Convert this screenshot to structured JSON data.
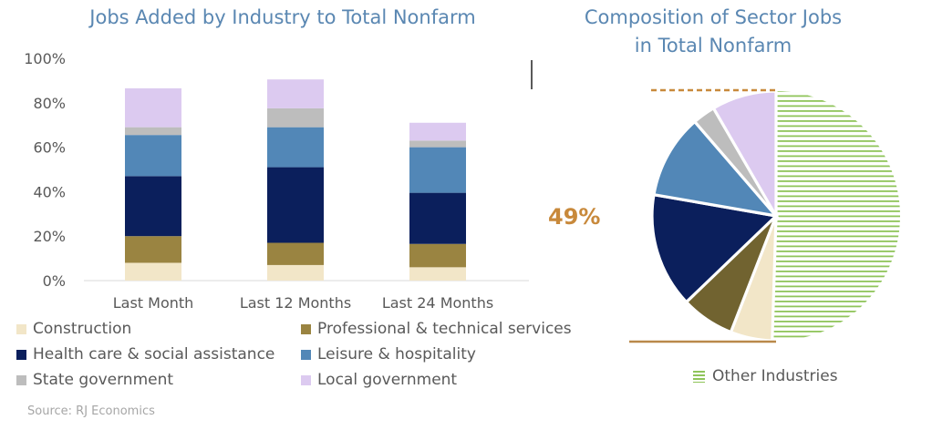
{
  "chart_data": [
    {
      "type": "bar",
      "stacked": true,
      "title": "Jobs Added by Industry to Total Nonfarm",
      "categories": [
        "Last Month",
        "Last 12 Months",
        "Last 24 Months"
      ],
      "ylim": [
        0,
        100
      ],
      "yticks": [
        "0%",
        "20%",
        "40%",
        "60%",
        "80%",
        "100%"
      ],
      "grid": false,
      "legend_placement": "bottom",
      "series": [
        {
          "name": "Construction",
          "color": "#f2e6c8",
          "values": [
            8,
            7,
            6
          ]
        },
        {
          "name": "Professional & technical services",
          "color": "#9a8441",
          "values": [
            12,
            10,
            10.5
          ]
        },
        {
          "name": "Health care & social assistance",
          "color": "#0b1f5c",
          "values": [
            27,
            34,
            23
          ]
        },
        {
          "name": "Leisure & hospitality",
          "color": "#5287b7",
          "values": [
            18.5,
            18,
            20.5
          ]
        },
        {
          "name": "State government",
          "color": "#bdbdbd",
          "values": [
            3.5,
            8.5,
            3
          ]
        },
        {
          "name": "Local government",
          "color": "#dccaf0",
          "values": [
            17.5,
            13,
            8
          ]
        }
      ]
    },
    {
      "type": "pie",
      "title": "Composition of Sector Jobs in Total Nonfarm",
      "slices": [
        {
          "name": "Other Industries",
          "value": 51,
          "color": "#8fc45a",
          "hatched": true
        },
        {
          "name": "Construction",
          "value": 5.5,
          "color": "#f2e6c8"
        },
        {
          "name": "Professional & technical services",
          "value": 7,
          "color": "#716330"
        },
        {
          "name": "Health care & social assistance",
          "value": 15,
          "color": "#0b1f5c"
        },
        {
          "name": "Leisure & hospitality",
          "value": 11,
          "color": "#5287b7"
        },
        {
          "name": "State government",
          "value": 3,
          "color": "#bdbdbd"
        },
        {
          "name": "Local government",
          "value": 8.5,
          "color": "#dccaf0"
        }
      ],
      "annotation": "49%",
      "annotation_color": "#c8893b",
      "legend_label": "Other Industries"
    }
  ],
  "source": "Source: RJ Economics"
}
